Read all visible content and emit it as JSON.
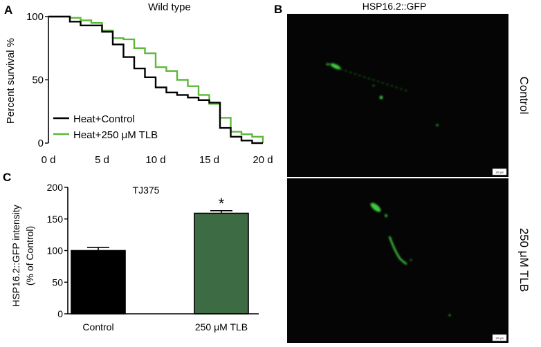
{
  "panels": {
    "a": {
      "letter": "A",
      "title": "Wild type"
    },
    "b": {
      "letter": "B",
      "title": "HSP16.2::GFP",
      "images": [
        {
          "condition": "Control",
          "scale_bar": "100 μm"
        },
        {
          "condition": "250 μM TLB",
          "scale_bar": "100 μm"
        }
      ]
    },
    "c": {
      "letter": "C",
      "title": "TJ375"
    }
  },
  "colors": {
    "control": "#000000",
    "tlb_line": "#5cb83a",
    "tlb_bar": "#3d6b43",
    "micro_bg": "#050505",
    "gfp": "#3ccc3c"
  },
  "chart_data": [
    {
      "type": "line",
      "title": "Wild type",
      "xlabel": "",
      "ylabel": "Percent survival %",
      "xlim": [
        0,
        20
      ],
      "ylim": [
        0,
        100
      ],
      "x_ticks": [
        0,
        5,
        10,
        15,
        20
      ],
      "x_tick_labels": [
        "0 d",
        "5 d",
        "10 d",
        "15 d",
        "20 d"
      ],
      "y_ticks": [
        0,
        50,
        100
      ],
      "y_tick_labels": [
        "0",
        "50",
        "100"
      ],
      "legend_position": "bottom-left",
      "series": [
        {
          "name": "Heat+Control",
          "key": "control",
          "step": true,
          "x": [
            0,
            2,
            3,
            5,
            6,
            7,
            8,
            9,
            10,
            11,
            12,
            13,
            14,
            15,
            16,
            17,
            18,
            19
          ],
          "y": [
            100,
            96,
            93,
            88,
            78,
            68,
            59,
            52,
            44,
            40,
            38,
            36,
            34,
            32,
            12,
            5,
            2,
            0
          ]
        },
        {
          "name": "Heat+250 μM TLB",
          "key": "tlb",
          "step": true,
          "x": [
            0,
            2,
            3,
            4,
            5,
            6,
            7,
            8,
            9,
            10,
            11,
            12,
            13,
            14,
            15,
            16,
            17,
            18,
            19,
            20
          ],
          "y": [
            100,
            99,
            97,
            95,
            89,
            83,
            82,
            75,
            71,
            60,
            57,
            50,
            45,
            38,
            31,
            20,
            9,
            7,
            5,
            0
          ]
        }
      ]
    },
    {
      "type": "bar",
      "title": "TJ375",
      "xlabel": "",
      "ylabel": "HSP16.2::GFP intensity",
      "ylabel2": "(% of Control)",
      "ylim": [
        0,
        200
      ],
      "y_ticks": [
        0,
        50,
        100,
        150,
        200
      ],
      "y_tick_labels": [
        "0",
        "50",
        "100",
        "150",
        "200"
      ],
      "categories": [
        "Control",
        "250 μM TLB"
      ],
      "values": [
        100,
        159
      ],
      "errors": [
        5,
        4
      ],
      "annotations": [
        "",
        "*"
      ]
    }
  ]
}
